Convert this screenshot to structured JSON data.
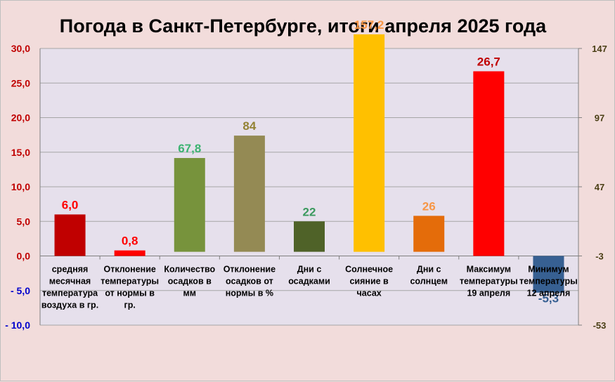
{
  "chart_data": {
    "type": "bar",
    "title": "Погода в Санкт-Петербурге, итоги апреля 2025 года",
    "y_left": {
      "ticks": [
        "30,0",
        "25,0",
        "20,0",
        "15,0",
        "10,0",
        "5,0",
        "0,0",
        "- 5,0",
        "- 10,0"
      ],
      "range": [
        -10,
        30
      ]
    },
    "y_right": {
      "ticks": [
        "147",
        "97",
        "47",
        "-3",
        "-53"
      ],
      "range": [
        -53,
        147
      ]
    },
    "categories": [
      {
        "label_lines": [
          "средняя",
          "месячная",
          "температура",
          "воздуха в гр."
        ],
        "value": 6.0,
        "label": "6,0",
        "color": "#c00000",
        "label_color": "#ff0000",
        "axis": "left"
      },
      {
        "label_lines": [
          "Отклонение",
          "температуры",
          "от нормы в",
          "гр."
        ],
        "value": 0.8,
        "label": "0,8",
        "color": "#ff0000",
        "label_color": "#ff0000",
        "axis": "left"
      },
      {
        "label_lines": [
          "Количество",
          "осадков в",
          "мм"
        ],
        "value": 67.8,
        "label": "67,8",
        "color": "#77933c",
        "label_color": "#3cb371",
        "axis": "right"
      },
      {
        "label_lines": [
          "Отклонение",
          "осадков от",
          "нормы в %"
        ],
        "value": 84,
        "label": "84",
        "color": "#948a54",
        "label_color": "#938233",
        "axis": "right"
      },
      {
        "label_lines": [
          "Дни с",
          "осадками"
        ],
        "value": 22,
        "label": "22",
        "color": "#4f6228",
        "label_color": "#3c9a5f",
        "axis": "right"
      },
      {
        "label_lines": [
          "Солнечное",
          "сияние в",
          "часах"
        ],
        "value": 157.2,
        "label": "157,2",
        "color": "#ffc000",
        "label_color": "#f79646",
        "axis": "right"
      },
      {
        "label_lines": [
          "Дни с",
          "солнцем"
        ],
        "value": 26,
        "label": "26",
        "color": "#e46c0a",
        "label_color": "#f79646",
        "axis": "right"
      },
      {
        "label_lines": [
          "Максимум",
          "температуры",
          "19 апреля"
        ],
        "value": 26.7,
        "label": "26,7",
        "color": "#ff0000",
        "label_color": "#c00000",
        "axis": "left"
      },
      {
        "label_lines": [
          "Минимум",
          "температуры",
          "12 апреля"
        ],
        "value": -5.3,
        "label": "-5,3",
        "color": "#376092",
        "label_color": "#376092",
        "axis": "left"
      }
    ],
    "colors": {
      "plot_bg": "#e6e0ec",
      "page_bg": "#f2dcdb",
      "left_positive_tick": "#c00000",
      "left_negative_tick": "#0000cc"
    },
    "grid": "horizontal",
    "legend": "none"
  }
}
